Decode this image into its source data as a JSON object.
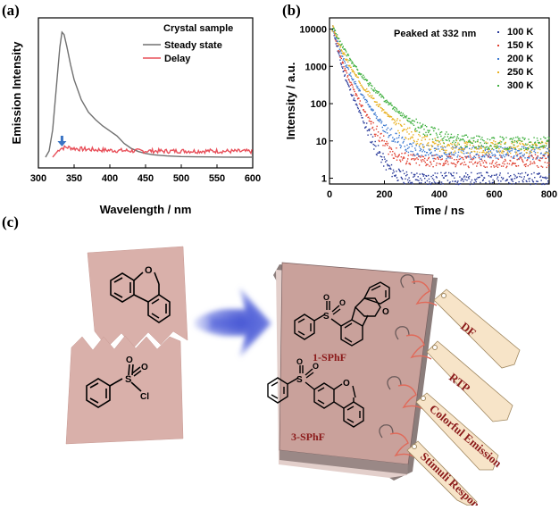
{
  "panel_labels": {
    "a": "(a)",
    "b": "(b)",
    "c": "(c)"
  },
  "chart_data": [
    {
      "type": "line",
      "panel": "(a)",
      "xlabel": "Wavelength / nm",
      "ylabel": "Emission Intensity",
      "xlim": [
        300,
        600
      ],
      "xticks": [
        "300",
        "350",
        "400",
        "450",
        "500",
        "550",
        "600"
      ],
      "legend_title": "Crystal sample",
      "legend_position": "top-right",
      "series": [
        {
          "name": "Steady state",
          "color": "#707070",
          "x": [
            310,
            315,
            320,
            325,
            330,
            333,
            336,
            340,
            345,
            350,
            360,
            370,
            380,
            390,
            400,
            410,
            420,
            430,
            440,
            450,
            460,
            470,
            480,
            500,
            520,
            540,
            560,
            580,
            600
          ],
          "y": [
            0.0,
            0.05,
            0.22,
            0.55,
            0.88,
            1.0,
            0.98,
            0.88,
            0.74,
            0.62,
            0.46,
            0.36,
            0.3,
            0.25,
            0.21,
            0.17,
            0.11,
            0.07,
            0.045,
            0.03,
            0.02,
            0.015,
            0.01,
            0.005,
            0.003,
            0.002,
            0.001,
            0.0,
            0.0
          ]
        },
        {
          "name": "Delay",
          "color": "#e8505a",
          "x": [
            320,
            330,
            340,
            350,
            360,
            380,
            400,
            420,
            440,
            460,
            480,
            500,
            520,
            540,
            560,
            580,
            600
          ],
          "y": [
            0.0,
            0.07,
            0.08,
            0.07,
            0.065,
            0.06,
            0.055,
            0.052,
            0.05,
            0.05,
            0.048,
            0.05,
            0.048,
            0.05,
            0.048,
            0.047,
            0.046
          ]
        }
      ],
      "annotation": {
        "type": "arrow",
        "x": 333,
        "color": "#3a74c4"
      }
    },
    {
      "type": "scatter",
      "panel": "(b)",
      "xlabel": "Time / ns",
      "ylabel": "Intensity / a.u.",
      "xlim": [
        0,
        800
      ],
      "ylim": [
        0.7,
        20000
      ],
      "yscale": "log",
      "xticks": [
        "0",
        "200",
        "400",
        "600",
        "800"
      ],
      "yticks": [
        "1",
        "10",
        "100",
        "1000",
        "10000"
      ],
      "annotation_text": "Peaked at 332 nm",
      "legend_position": "top-right",
      "series": [
        {
          "name": "100 K",
          "color": "#2a3a9a",
          "tau": 10,
          "baseline": 1
        },
        {
          "name": "150 K",
          "color": "#e04030",
          "tau": 12,
          "baseline": 3
        },
        {
          "name": "200 K",
          "color": "#3a78d0",
          "tau": 15,
          "baseline": 5
        },
        {
          "name": "250 K",
          "color": "#e8b020",
          "tau": 19,
          "baseline": 7
        },
        {
          "name": "300 K",
          "color": "#40b040",
          "tau": 24,
          "baseline": 9
        }
      ]
    }
  ],
  "panel_c": {
    "molecule_1": "1-SPhF",
    "molecule_2": "3-SPhF",
    "atoms": {
      "o": "O",
      "s": "S",
      "cl": "Cl"
    },
    "tags": [
      "DF",
      "RTP",
      "Colorful Emission",
      "Stimuli Response"
    ]
  }
}
